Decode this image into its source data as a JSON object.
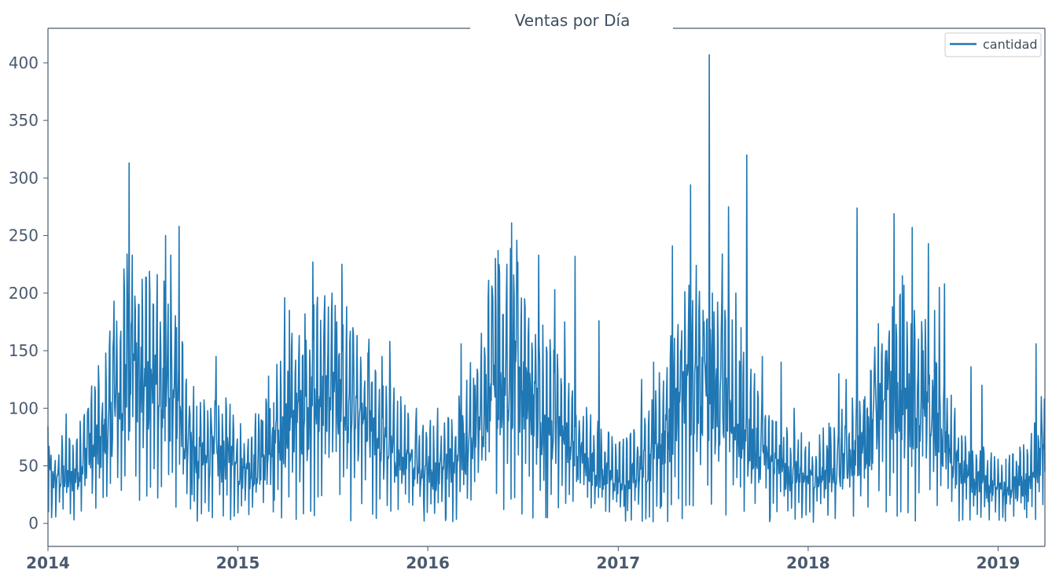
{
  "chart_data": {
    "type": "line",
    "title": "Ventas por Día",
    "xlabel": "",
    "ylabel": "",
    "x_range": [
      "2014-01-01",
      "2019-04-01"
    ],
    "ylim": [
      -20,
      430
    ],
    "y_ticks": [
      0,
      50,
      100,
      150,
      200,
      250,
      300,
      350,
      400
    ],
    "x_ticks": [
      {
        "date": "2014-01-01",
        "label": "2014"
      },
      {
        "date": "2015-01-01",
        "label": "2015"
      },
      {
        "date": "2016-01-01",
        "label": "2016"
      },
      {
        "date": "2017-01-01",
        "label": "2017"
      },
      {
        "date": "2018-01-01",
        "label": "2018"
      },
      {
        "date": "2019-01-01",
        "label": "2019"
      }
    ],
    "grid": false,
    "legend_position": "top-right",
    "series": [
      {
        "name": "cantidad",
        "color": "#1f77b4",
        "points": [
          [
            "2014-01-01",
            45
          ],
          [
            "2014-01-15",
            30
          ],
          [
            "2014-02-01",
            40
          ],
          [
            "2014-02-15",
            35
          ],
          [
            "2014-03-01",
            45
          ],
          [
            "2014-03-15",
            55
          ],
          [
            "2014-04-01",
            60
          ],
          [
            "2014-04-15",
            65
          ],
          [
            "2014-05-01",
            80
          ],
          [
            "2014-05-15",
            95
          ],
          [
            "2014-06-01",
            110
          ],
          [
            "2014-06-15",
            120
          ],
          [
            "2014-07-01",
            110
          ],
          [
            "2014-07-15",
            115
          ],
          [
            "2014-08-01",
            105
          ],
          [
            "2014-08-15",
            100
          ],
          [
            "2014-09-01",
            90
          ],
          [
            "2014-09-15",
            80
          ],
          [
            "2014-10-01",
            65
          ],
          [
            "2014-10-15",
            55
          ],
          [
            "2014-11-01",
            50
          ],
          [
            "2014-11-15",
            55
          ],
          [
            "2014-12-01",
            50
          ],
          [
            "2014-12-15",
            55
          ],
          [
            "2015-01-01",
            45
          ],
          [
            "2015-01-15",
            40
          ],
          [
            "2015-02-01",
            45
          ],
          [
            "2015-02-15",
            50
          ],
          [
            "2015-03-01",
            55
          ],
          [
            "2015-03-15",
            65
          ],
          [
            "2015-04-01",
            75
          ],
          [
            "2015-04-15",
            80
          ],
          [
            "2015-05-01",
            85
          ],
          [
            "2015-05-15",
            90
          ],
          [
            "2015-06-01",
            95
          ],
          [
            "2015-06-15",
            100
          ],
          [
            "2015-07-01",
            100
          ],
          [
            "2015-07-15",
            95
          ],
          [
            "2015-08-01",
            90
          ],
          [
            "2015-08-15",
            80
          ],
          [
            "2015-09-01",
            75
          ],
          [
            "2015-09-15",
            70
          ],
          [
            "2015-10-01",
            65
          ],
          [
            "2015-10-15",
            60
          ],
          [
            "2015-11-01",
            55
          ],
          [
            "2015-11-15",
            50
          ],
          [
            "2015-12-01",
            45
          ],
          [
            "2015-12-15",
            45
          ],
          [
            "2016-01-01",
            45
          ],
          [
            "2016-01-15",
            40
          ],
          [
            "2016-02-01",
            45
          ],
          [
            "2016-02-15",
            50
          ],
          [
            "2016-03-01",
            55
          ],
          [
            "2016-03-15",
            60
          ],
          [
            "2016-04-01",
            75
          ],
          [
            "2016-04-15",
            90
          ],
          [
            "2016-05-01",
            105
          ],
          [
            "2016-05-15",
            115
          ],
          [
            "2016-06-01",
            120
          ],
          [
            "2016-06-15",
            115
          ],
          [
            "2016-07-01",
            105
          ],
          [
            "2016-07-15",
            95
          ],
          [
            "2016-08-01",
            85
          ],
          [
            "2016-08-15",
            80
          ],
          [
            "2016-09-01",
            75
          ],
          [
            "2016-09-15",
            70
          ],
          [
            "2016-10-01",
            60
          ],
          [
            "2016-10-15",
            55
          ],
          [
            "2016-11-01",
            50
          ],
          [
            "2016-11-15",
            45
          ],
          [
            "2016-12-01",
            40
          ],
          [
            "2016-12-15",
            38
          ],
          [
            "2017-01-01",
            35
          ],
          [
            "2017-01-15",
            35
          ],
          [
            "2017-02-01",
            40
          ],
          [
            "2017-02-15",
            45
          ],
          [
            "2017-03-01",
            50
          ],
          [
            "2017-03-15",
            60
          ],
          [
            "2017-04-01",
            70
          ],
          [
            "2017-04-15",
            80
          ],
          [
            "2017-05-01",
            95
          ],
          [
            "2017-05-15",
            105
          ],
          [
            "2017-06-01",
            110
          ],
          [
            "2017-06-15",
            105
          ],
          [
            "2017-07-01",
            100
          ],
          [
            "2017-07-15",
            95
          ],
          [
            "2017-08-01",
            90
          ],
          [
            "2017-08-15",
            80
          ],
          [
            "2017-09-01",
            70
          ],
          [
            "2017-09-15",
            65
          ],
          [
            "2017-10-01",
            55
          ],
          [
            "2017-10-15",
            50
          ],
          [
            "2017-11-01",
            45
          ],
          [
            "2017-11-15",
            40
          ],
          [
            "2017-12-01",
            40
          ],
          [
            "2017-12-15",
            38
          ],
          [
            "2018-01-01",
            35
          ],
          [
            "2018-01-15",
            35
          ],
          [
            "2018-02-01",
            40
          ],
          [
            "2018-02-15",
            40
          ],
          [
            "2018-03-01",
            45
          ],
          [
            "2018-03-15",
            50
          ],
          [
            "2018-04-01",
            55
          ],
          [
            "2018-04-15",
            60
          ],
          [
            "2018-05-01",
            70
          ],
          [
            "2018-05-15",
            85
          ],
          [
            "2018-06-01",
            95
          ],
          [
            "2018-06-15",
            100
          ],
          [
            "2018-07-01",
            100
          ],
          [
            "2018-07-15",
            95
          ],
          [
            "2018-08-01",
            90
          ],
          [
            "2018-08-15",
            85
          ],
          [
            "2018-09-01",
            75
          ],
          [
            "2018-09-15",
            65
          ],
          [
            "2018-10-01",
            55
          ],
          [
            "2018-10-15",
            45
          ],
          [
            "2018-11-01",
            40
          ],
          [
            "2018-11-15",
            35
          ],
          [
            "2018-12-01",
            32
          ],
          [
            "2018-12-15",
            30
          ],
          [
            "2019-01-01",
            28
          ],
          [
            "2019-01-15",
            28
          ],
          [
            "2019-02-01",
            30
          ],
          [
            "2019-02-15",
            32
          ],
          [
            "2019-03-01",
            38
          ],
          [
            "2019-03-15",
            45
          ],
          [
            "2019-04-01",
            50
          ]
        ],
        "spikes": [
          [
            "2014-01-03",
            67
          ],
          [
            "2014-01-08",
            5
          ],
          [
            "2014-02-05",
            95
          ],
          [
            "2014-02-20",
            3
          ],
          [
            "2014-03-20",
            100
          ],
          [
            "2014-04-08",
            137
          ],
          [
            "2014-04-22",
            148
          ],
          [
            "2014-05-08",
            193
          ],
          [
            "2014-05-20",
            158
          ],
          [
            "2014-06-02",
            234
          ],
          [
            "2014-06-06",
            313
          ],
          [
            "2014-06-12",
            233
          ],
          [
            "2014-06-25",
            190
          ],
          [
            "2014-07-15",
            219
          ],
          [
            "2014-08-05",
            175
          ],
          [
            "2014-08-15",
            250
          ],
          [
            "2014-08-25",
            233
          ],
          [
            "2014-09-05",
            170
          ],
          [
            "2014-09-10",
            258
          ],
          [
            "2014-10-05",
            25
          ],
          [
            "2014-10-15",
            2
          ],
          [
            "2014-11-10",
            100
          ],
          [
            "2014-11-20",
            145
          ],
          [
            "2014-12-10",
            100
          ],
          [
            "2015-01-15",
            20
          ],
          [
            "2015-02-15",
            90
          ],
          [
            "2015-03-01",
            128
          ],
          [
            "2015-03-10",
            10
          ],
          [
            "2015-04-01",
            196
          ],
          [
            "2015-04-10",
            185
          ],
          [
            "2015-05-10",
            182
          ],
          [
            "2015-05-25",
            227
          ],
          [
            "2015-06-15",
            160
          ],
          [
            "2015-07-01",
            200
          ],
          [
            "2015-07-10",
            175
          ],
          [
            "2015-07-20",
            225
          ],
          [
            "2015-08-10",
            170
          ],
          [
            "2015-09-10",
            160
          ],
          [
            "2015-10-05",
            145
          ],
          [
            "2015-10-20",
            158
          ],
          [
            "2015-11-10",
            110
          ],
          [
            "2015-12-10",
            100
          ],
          [
            "2015-12-25",
            2
          ],
          [
            "2016-01-20",
            100
          ],
          [
            "2016-02-05",
            5
          ],
          [
            "2016-03-05",
            156
          ],
          [
            "2016-04-01",
            120
          ],
          [
            "2016-04-20",
            145
          ],
          [
            "2016-05-05",
            195
          ],
          [
            "2016-05-15",
            237
          ],
          [
            "2016-06-01",
            225
          ],
          [
            "2016-06-10",
            261
          ],
          [
            "2016-06-20",
            246
          ],
          [
            "2016-07-05",
            195
          ],
          [
            "2016-07-20",
            150
          ],
          [
            "2016-08-01",
            233
          ],
          [
            "2016-08-15",
            5
          ],
          [
            "2016-09-01",
            203
          ],
          [
            "2016-09-20",
            175
          ],
          [
            "2016-10-10",
            232
          ],
          [
            "2016-10-20",
            35
          ],
          [
            "2016-11-25",
            176
          ],
          [
            "2016-12-15",
            10
          ],
          [
            "2017-01-15",
            2
          ],
          [
            "2017-02-15",
            125
          ],
          [
            "2017-03-10",
            140
          ],
          [
            "2017-03-25",
            15
          ],
          [
            "2017-04-15",
            241
          ],
          [
            "2017-05-01",
            150
          ],
          [
            "2017-05-20",
            294
          ],
          [
            "2017-06-05",
            185
          ],
          [
            "2017-06-15",
            175
          ],
          [
            "2017-06-25",
            407
          ],
          [
            "2017-07-01",
            200
          ],
          [
            "2017-07-20",
            234
          ],
          [
            "2017-08-01",
            275
          ],
          [
            "2017-08-15",
            200
          ],
          [
            "2017-08-25",
            170
          ],
          [
            "2017-09-05",
            320
          ],
          [
            "2017-09-20",
            130
          ],
          [
            "2017-10-05",
            145
          ],
          [
            "2017-10-20",
            5
          ],
          [
            "2017-11-10",
            140
          ],
          [
            "2017-12-05",
            100
          ],
          [
            "2017-12-20",
            5
          ],
          [
            "2018-02-10",
            87
          ],
          [
            "2018-03-01",
            130
          ],
          [
            "2018-03-15",
            125
          ],
          [
            "2018-04-05",
            274
          ],
          [
            "2018-04-20",
            110
          ],
          [
            "2018-05-10",
            124
          ],
          [
            "2018-06-01",
            150
          ],
          [
            "2018-06-15",
            269
          ],
          [
            "2018-07-01",
            215
          ],
          [
            "2018-07-10",
            175
          ],
          [
            "2018-07-20",
            257
          ],
          [
            "2018-08-01",
            160
          ],
          [
            "2018-08-10",
            150
          ],
          [
            "2018-08-20",
            243
          ],
          [
            "2018-09-01",
            185
          ],
          [
            "2018-09-10",
            205
          ],
          [
            "2018-09-20",
            208
          ],
          [
            "2018-10-10",
            100
          ],
          [
            "2018-11-10",
            136
          ],
          [
            "2018-12-01",
            120
          ],
          [
            "2018-12-15",
            3
          ],
          [
            "2019-01-15",
            2
          ],
          [
            "2019-02-10",
            50
          ],
          [
            "2019-02-25",
            5
          ],
          [
            "2019-03-15",
            156
          ],
          [
            "2019-03-25",
            110
          ],
          [
            "2019-03-31",
            108
          ]
        ]
      }
    ]
  }
}
